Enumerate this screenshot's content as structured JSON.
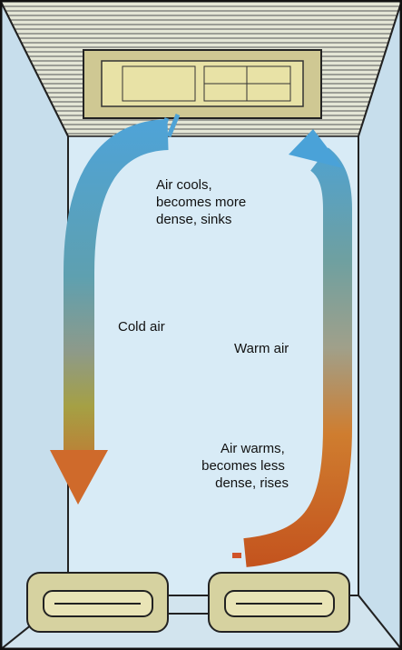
{
  "labels": {
    "cools": [
      "Air cools,",
      "becomes more",
      "dense, sinks"
    ],
    "cold": "Cold air",
    "warm": "Warm air",
    "warms": [
      "Air warms,",
      "becomes less",
      "dense, rises"
    ]
  }
}
